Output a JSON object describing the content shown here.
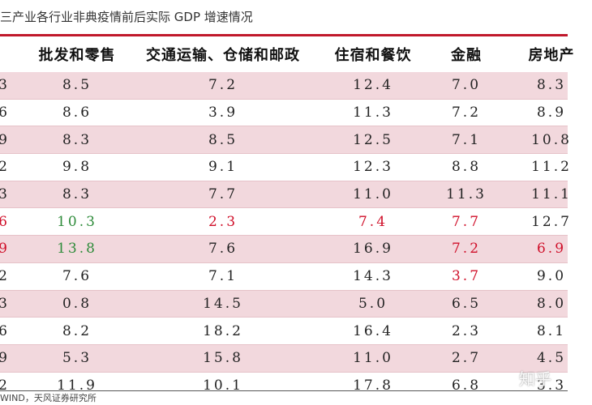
{
  "title": "三产业各行业非典疫情前后实际 GDP 增速情况",
  "header": [
    "",
    "批发和零售",
    "交通运输、仓储和邮政",
    "住宿和餐饮",
    "金融",
    "房地产"
  ],
  "rows": [
    [
      "3",
      "8.5",
      "7.2",
      "12.4",
      "7.0",
      "8.3"
    ],
    [
      "6",
      "8.6",
      "3.9",
      "11.3",
      "7.2",
      "8.9"
    ],
    [
      "9",
      "8.3",
      "8.5",
      "12.5",
      "7.1",
      "10.8"
    ],
    [
      "2",
      "9.8",
      "9.1",
      "12.3",
      "8.8",
      "11.2"
    ],
    [
      "3",
      "8.3",
      "7.7",
      "11.0",
      "11.3",
      "11.1"
    ],
    [
      "6",
      "10.3",
      "2.3",
      "7.4",
      "7.7",
      "12.7"
    ],
    [
      "9",
      "13.8",
      "7.6",
      "16.9",
      "7.2",
      "6.9"
    ],
    [
      "2",
      "7.6",
      "7.1",
      "14.3",
      "3.7",
      "9.0"
    ],
    [
      "3",
      "0.8",
      "14.5",
      "5.0",
      "6.5",
      "8.0"
    ],
    [
      "6",
      "8.2",
      "18.2",
      "16.4",
      "2.3",
      "8.1"
    ],
    [
      "9",
      "5.3",
      "15.8",
      "11.0",
      "2.7",
      "4.5"
    ],
    [
      "2",
      "11.9",
      "10.1",
      "17.8",
      "6.8",
      "3.3"
    ]
  ],
  "highlights": {
    "5-0": "red",
    "5-1": "green",
    "5-2": "red",
    "5-3": "red",
    "5-4": "red",
    "6-0": "red",
    "6-1": "green",
    "6-4": "red",
    "6-5": "red",
    "7-4": "red"
  },
  "colors": {
    "accent": "#c0182b",
    "row_shade": "#f2d8dd",
    "red": "#d0102a",
    "green": "#2e8b3a"
  },
  "source": "WIND，天风证券研究所",
  "watermark": "知乎"
}
